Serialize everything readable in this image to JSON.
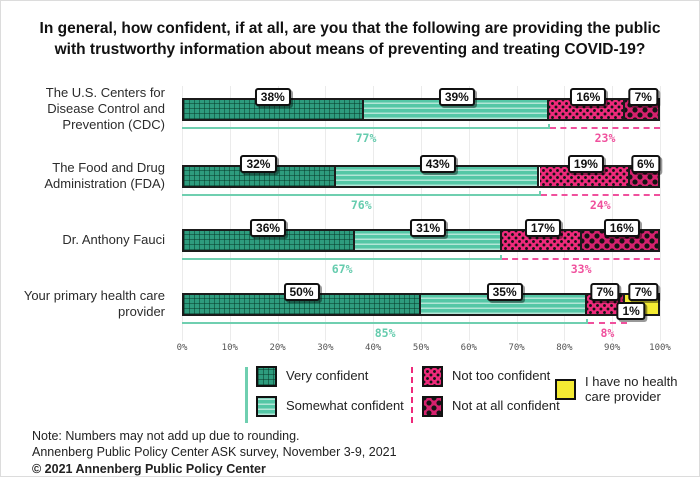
{
  "title": "In general, how confident, if at all, are you that the following are providing the public with trustworthy information about means of preventing and treating COVID-19?",
  "chart_data": {
    "type": "bar",
    "orientation": "horizontal",
    "stacked": true,
    "title": "In general, how confident, if at all, are you that the following are providing the public with trustworthy information about means of preventing and treating COVID-19?",
    "categories": [
      "The U.S. Centers for Disease Control and Prevention (CDC)",
      "The Food and Drug Administration (FDA)",
      "Dr. Anthony Fauci",
      "Your primary health care provider"
    ],
    "series": [
      {
        "name": "Very confident",
        "key": "very-confident",
        "values": [
          38,
          32,
          36,
          50
        ]
      },
      {
        "name": "Somewhat confident",
        "key": "somewhat-confident",
        "values": [
          39,
          43,
          31,
          35
        ]
      },
      {
        "name": "Not too confident",
        "key": "not-too-confident",
        "values": [
          16,
          19,
          17,
          7
        ]
      },
      {
        "name": "Not at all confident",
        "key": "not-at-all-confident",
        "values": [
          7,
          6,
          16,
          1
        ]
      },
      {
        "name": "I have no health care provider",
        "key": "no-provider",
        "values": [
          0,
          0,
          0,
          7
        ]
      }
    ],
    "segment_labels": [
      [
        "38%",
        "39%",
        "16%",
        "7%",
        ""
      ],
      [
        "32%",
        "43%",
        "19%",
        "6%",
        ""
      ],
      [
        "36%",
        "31%",
        "17%",
        "16%",
        ""
      ],
      [
        "50%",
        "35%",
        "7%",
        "1%",
        "7%"
      ]
    ],
    "subtotals": {
      "confident_labels": [
        "77%",
        "76%",
        "67%",
        "85%"
      ],
      "not_confident_labels": [
        "23%",
        "24%",
        "33%",
        "8%"
      ]
    },
    "x_ticks": [
      "0%",
      "10%",
      "20%",
      "30%",
      "40%",
      "50%",
      "60%",
      "70%",
      "80%",
      "90%",
      "100%"
    ],
    "xlim": [
      0,
      100
    ],
    "grid": true,
    "legend_position": "bottom"
  },
  "colors": {
    "very_confident": "#2E9C7E",
    "somewhat_confident": "#54C7A6",
    "not_too_confident": "#EE2A7B",
    "not_at_all_confident": "#D6216E",
    "no_provider": "#F4EB33",
    "confident_subtotal": "#66CCAE",
    "not_confident_subtotal": "#F0509D"
  },
  "legend": {
    "groups": [
      {
        "rail": "teal-solid",
        "items": [
          {
            "label": "Very confident",
            "swatch": "very-confident"
          },
          {
            "label": "Somewhat confident",
            "swatch": "somewhat-confident"
          }
        ]
      },
      {
        "rail": "pink-dashed",
        "items": [
          {
            "label": "Not too confident",
            "swatch": "not-too-confident"
          },
          {
            "label": "Not at all confident",
            "swatch": "not-at-all-confident"
          }
        ]
      },
      {
        "rail": "none",
        "items": [
          {
            "label": "I have no health care provider",
            "swatch": "no-provider"
          }
        ]
      }
    ]
  },
  "notes": {
    "line1": "Note: Numbers may not add up due to rounding.",
    "line2": "Annenberg Public Policy Center ASK survey, November 3-9, 2021",
    "line3": "© 2021 Annenberg Public Policy Center"
  }
}
